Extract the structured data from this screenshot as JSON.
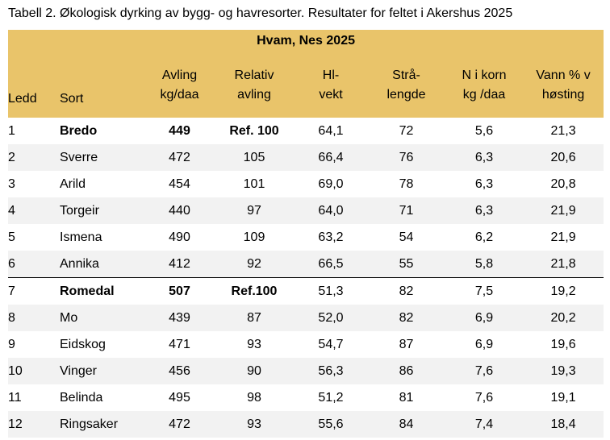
{
  "caption": "Tabell 2.  Økologisk dyrking av bygg- og havresorter. Resultater for feltet i Akershus 2025",
  "table": {
    "title": "Hvam, Nes 2025",
    "headers": [
      [
        "Ledd"
      ],
      [
        "Sort"
      ],
      [
        "Avling",
        "kg/daa"
      ],
      [
        "Relativ",
        "avling"
      ],
      [
        "Hl-",
        "vekt"
      ],
      [
        "Strå-",
        "lengde"
      ],
      [
        "N i korn",
        "kg /daa"
      ],
      [
        "Vann % v",
        "høsting"
      ]
    ],
    "rows": [
      [
        "1",
        "Bredo",
        "449",
        "Ref. 100",
        "64,1",
        "72",
        "5,6",
        "21,3"
      ],
      [
        "2",
        "Sverre",
        "472",
        "105",
        "66,4",
        "76",
        "6,3",
        "20,6"
      ],
      [
        "3",
        "Arild",
        "454",
        "101",
        "69,0",
        "78",
        "6,3",
        "20,8"
      ],
      [
        "4",
        "Torgeir",
        "440",
        "97",
        "64,0",
        "71",
        "6,3",
        "21,9"
      ],
      [
        "5",
        "Ismena",
        "490",
        "109",
        "63,2",
        "54",
        "6,2",
        "21,9"
      ],
      [
        "6",
        "Annika",
        "412",
        "92",
        "66,5",
        "55",
        "5,8",
        "21,8"
      ],
      [
        "7",
        "Romedal",
        "507",
        "Ref.100",
        "51,3",
        "82",
        "7,5",
        "19,2"
      ],
      [
        "8",
        "Mo",
        "439",
        "87",
        "52,0",
        "82",
        "6,9",
        "20,2"
      ],
      [
        "9",
        "Eidskog",
        "471",
        "93",
        "54,7",
        "87",
        "6,9",
        "19,6"
      ],
      [
        "10",
        "Vinger",
        "456",
        "90",
        "56,3",
        "86",
        "7,6",
        "19,3"
      ],
      [
        "11",
        "Belinda",
        "495",
        "98",
        "51,2",
        "81",
        "7,6",
        "19,1"
      ],
      [
        "12",
        "Ringsaker",
        "472",
        "93",
        "55,6",
        "84",
        "7,4",
        "18,4"
      ]
    ]
  }
}
